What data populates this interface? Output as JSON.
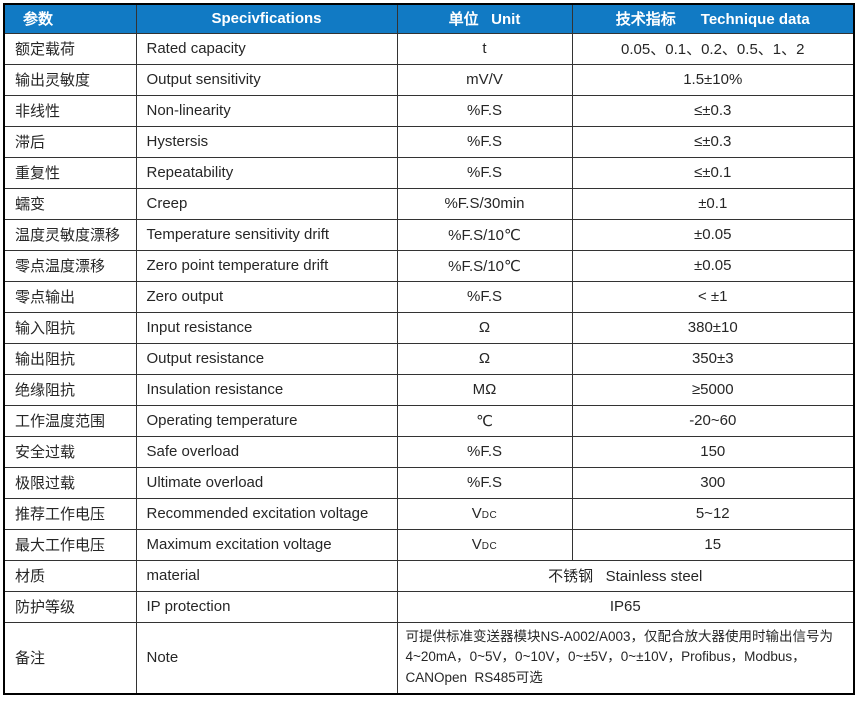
{
  "colors": {
    "header_bg": "#117ac4",
    "header_text": "#ffffff",
    "border_outer": "#000000",
    "border_inner": "#333333",
    "text": "#262626"
  },
  "table": {
    "headers": {
      "param": "参数",
      "spec": "Specivfications",
      "unit": "单位   Unit",
      "data": "技术指标      Technique data"
    },
    "rows": [
      {
        "param": "额定载荷",
        "spec": "Rated capacity",
        "unit": "t",
        "value": "0.05、0.1、0.2、0.5、1、2"
      },
      {
        "param": "输出灵敏度",
        "spec": "Output sensitivity",
        "unit": "mV/V",
        "value": "1.5±10%"
      },
      {
        "param": "非线性",
        "spec": "Non-linearity",
        "unit": "%F.S",
        "value": "≤±0.3"
      },
      {
        "param": "滞后",
        "spec": "Hystersis",
        "unit": "%F.S",
        "value": "≤±0.3"
      },
      {
        "param": "重复性",
        "spec": "Repeatability",
        "unit": "%F.S",
        "value": "≤±0.1"
      },
      {
        "param": "蠕变",
        "spec": "Creep",
        "unit": "%F.S/30min",
        "value": "±0.1"
      },
      {
        "param": "温度灵敏度漂移",
        "spec": "Temperature sensitivity drift",
        "unit": "%F.S/10℃",
        "value": "±0.05"
      },
      {
        "param": "零点温度漂移",
        "spec": "Zero point temperature drift",
        "unit": "%F.S/10℃",
        "value": "±0.05"
      },
      {
        "param": "零点输出",
        "spec": "Zero output",
        "unit": "%F.S",
        "value": "< ±1"
      },
      {
        "param": "输入阻抗",
        "spec": "Input resistance",
        "unit": "Ω",
        "value": "380±10"
      },
      {
        "param": "输出阻抗",
        "spec": "Output resistance",
        "unit": "Ω",
        "value": "350±3"
      },
      {
        "param": "绝缘阻抗",
        "spec": "Insulation resistance",
        "unit": "MΩ",
        "value": "≥5000"
      },
      {
        "param": "工作温度范围",
        "spec": "Operating temperature",
        "unit": "℃",
        "value": "-20~60"
      },
      {
        "param": "安全过载",
        "spec": "Safe overload",
        "unit": "%F.S",
        "value": "150"
      },
      {
        "param": "极限过载",
        "spec": "Ultimate overload",
        "unit": "%F.S",
        "value": "300"
      },
      {
        "param": "推荐工作电压",
        "spec": "Recommended excitation voltage",
        "unit": "V",
        "unit_sub": "DC",
        "value": "5~12"
      },
      {
        "param": "最大工作电压",
        "spec": "Maximum excitation voltage",
        "unit": "V",
        "unit_sub": "DC",
        "value": "15"
      },
      {
        "param": "材质",
        "spec": "material",
        "merged": "不锈钢   Stainless steel",
        "merged_align": "center"
      },
      {
        "param": "防护等级",
        "spec": "IP protection",
        "merged": "IP65",
        "merged_align": "center"
      },
      {
        "param": "备注",
        "spec": "Note",
        "merged": "可提供标准变送器模块NS-A002/A003，仅配合放大器使用时输出信号为4~20mA，0~5V，0~10V，0~±5V，0~±10V，Profibus，Modbus，CANOpen  RS485可选",
        "merged_align": "left"
      }
    ]
  }
}
